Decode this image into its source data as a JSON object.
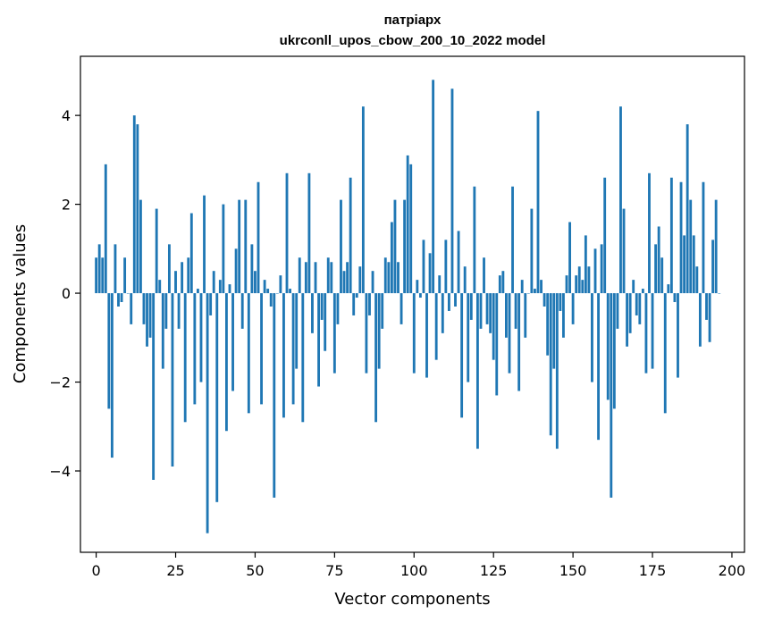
{
  "chart_data": {
    "type": "bar",
    "title": "патріарх",
    "subtitle": "ukrconll_upos_cbow_200_10_2022 model",
    "xlabel": "Vector components",
    "ylabel": "Components values",
    "xlim": [
      -4.95,
      203.95
    ],
    "ylim": [
      -5.83,
      5.33
    ],
    "xticks": [
      0,
      25,
      50,
      75,
      100,
      125,
      150,
      175,
      200
    ],
    "yticks": [
      -4,
      -2,
      0,
      2,
      4
    ],
    "bar_color": "#1f77b4",
    "grid": false,
    "values": [
      0.8,
      1.1,
      0.8,
      2.9,
      -2.6,
      -3.7,
      1.1,
      -0.3,
      -0.2,
      0.8,
      0.0,
      -0.7,
      4.0,
      3.8,
      2.1,
      -0.7,
      -1.2,
      -1.0,
      -4.2,
      1.9,
      0.3,
      -1.7,
      -0.8,
      1.1,
      -3.9,
      0.5,
      -0.8,
      0.7,
      -2.9,
      0.8,
      1.8,
      -2.5,
      0.1,
      -2.0,
      2.2,
      -5.4,
      -0.5,
      0.5,
      -4.7,
      0.3,
      2.0,
      -3.1,
      0.2,
      -2.2,
      1.0,
      2.1,
      -0.8,
      2.1,
      -2.7,
      1.1,
      0.5,
      2.5,
      -2.5,
      0.3,
      0.1,
      -0.3,
      -4.6,
      0.0,
      0.4,
      -2.8,
      2.7,
      0.1,
      -2.5,
      -1.7,
      0.8,
      -2.9,
      0.7,
      2.7,
      -0.9,
      0.7,
      -2.1,
      -0.6,
      -1.3,
      0.8,
      0.7,
      -1.8,
      -0.7,
      2.1,
      0.5,
      0.7,
      2.6,
      -0.5,
      -0.1,
      0.6,
      4.2,
      -1.8,
      -0.5,
      0.5,
      -2.9,
      -1.7,
      -0.8,
      0.8,
      0.7,
      1.6,
      2.1,
      0.7,
      -0.7,
      2.1,
      3.1,
      2.9,
      -1.8,
      0.3,
      -0.1,
      1.2,
      -1.9,
      0.9,
      4.8,
      -1.5,
      0.4,
      -0.9,
      1.2,
      -0.4,
      4.6,
      -0.3,
      1.4,
      -2.8,
      0.6,
      -2.0,
      -0.6,
      2.4,
      -3.5,
      -0.8,
      0.8,
      -0.7,
      -0.9,
      -1.5,
      -2.3,
      0.4,
      0.5,
      -1.0,
      -1.8,
      2.4,
      -0.8,
      -2.2,
      0.3,
      -1.0,
      0.0,
      1.9,
      0.1,
      4.1,
      0.3,
      -0.3,
      -1.4,
      -3.2,
      -1.7,
      -3.5,
      -0.4,
      -1.0,
      0.4,
      1.6,
      -0.7,
      0.4,
      0.6,
      0.3,
      1.3,
      0.6,
      -2.0,
      1.0,
      -3.3,
      1.1,
      2.6,
      -2.4,
      -4.6,
      -2.6,
      -0.8,
      4.2,
      1.9,
      -1.2,
      -0.9,
      0.3,
      -0.5,
      -0.7,
      0.1,
      -1.8,
      2.7,
      -1.7,
      1.1,
      1.5,
      0.8,
      -2.7,
      0.2,
      2.6,
      -0.2,
      -1.9,
      2.5,
      1.3,
      3.8,
      2.1,
      1.3,
      0.6,
      -1.2,
      2.5,
      -0.6,
      -1.1,
      1.2,
      2.1,
      0.0
    ]
  }
}
